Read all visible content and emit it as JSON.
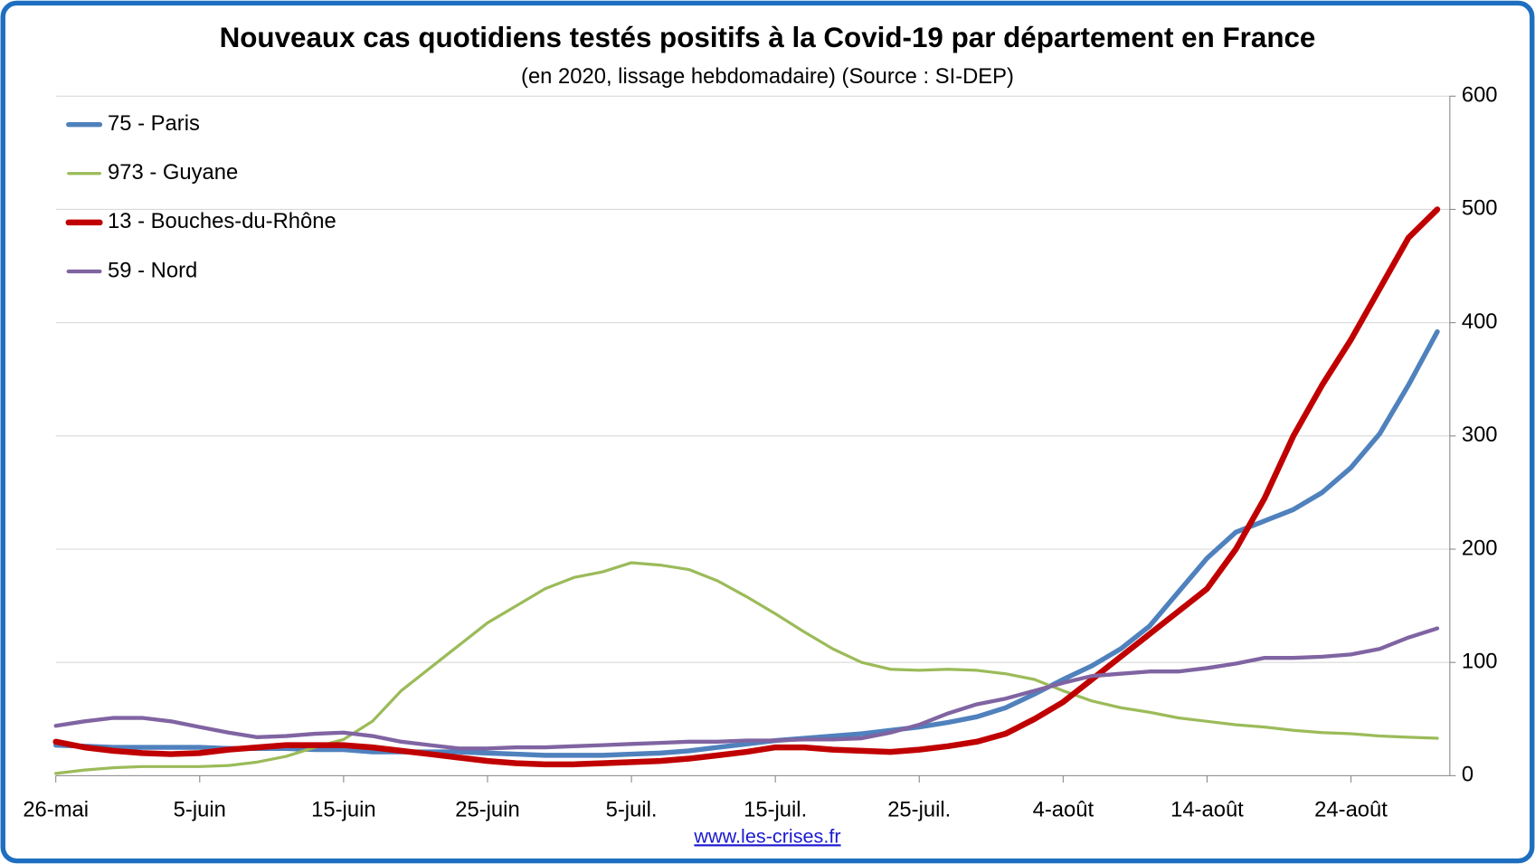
{
  "chart_data": {
    "type": "line",
    "title": "Nouveaux cas quotidiens testés positifs à la Covid-19 par département en France",
    "subtitle": "(en 2020, lissage hebdomadaire) (Source : SI-DEP)",
    "source_url": "www.les-crises.fr",
    "categories": [
      "26-mai",
      null,
      null,
      null,
      null,
      "5-juin",
      null,
      null,
      null,
      null,
      "15-juin",
      null,
      null,
      null,
      null,
      "25-juin",
      null,
      null,
      null,
      null,
      "5-juil.",
      null,
      null,
      null,
      null,
      "15-juil.",
      null,
      null,
      null,
      null,
      "25-juil.",
      null,
      null,
      null,
      null,
      "4-août",
      null,
      null,
      null,
      null,
      "14-août",
      null,
      null,
      null,
      null,
      "24-août",
      null,
      null,
      null
    ],
    "series": [
      {
        "name": "75 - Paris",
        "color": "#4f81bd",
        "values": [
          27,
          26,
          25,
          25,
          25,
          25,
          24,
          24,
          24,
          23,
          23,
          21,
          21,
          21,
          21,
          20,
          19,
          18,
          18,
          18,
          19,
          20,
          22,
          25,
          28,
          31,
          33,
          35,
          37,
          40,
          43,
          47,
          52,
          60,
          72,
          85,
          97,
          112,
          132,
          162,
          192,
          215,
          225,
          235,
          250,
          272,
          302,
          345,
          392
        ]
      },
      {
        "name": "973 - Guyane",
        "color": "#9bbb59",
        "values": [
          2,
          5,
          7,
          8,
          8,
          8,
          9,
          12,
          17,
          25,
          32,
          48,
          75,
          95,
          115,
          135,
          150,
          165,
          175,
          180,
          188,
          186,
          182,
          172,
          158,
          143,
          127,
          112,
          100,
          94,
          93,
          94,
          93,
          90,
          85,
          75,
          66,
          60,
          56,
          51,
          48,
          45,
          43,
          40,
          38,
          37,
          35,
          34,
          33
        ]
      },
      {
        "name": "13 - Bouches-du-Rhône",
        "color": "#c00000",
        "values": [
          30,
          25,
          22,
          20,
          19,
          20,
          23,
          25,
          27,
          27,
          27,
          25,
          22,
          19,
          16,
          13,
          11,
          10,
          10,
          11,
          12,
          13,
          15,
          18,
          21,
          25,
          25,
          23,
          22,
          21,
          23,
          26,
          30,
          37,
          50,
          65,
          85,
          105,
          125,
          145,
          165,
          200,
          245,
          300,
          345,
          385,
          430,
          475,
          500
        ]
      },
      {
        "name": "59 - Nord",
        "color": "#8064a2",
        "values": [
          44,
          48,
          51,
          51,
          48,
          43,
          38,
          34,
          35,
          37,
          38,
          35,
          30,
          27,
          24,
          24,
          25,
          25,
          26,
          27,
          28,
          29,
          30,
          30,
          31,
          31,
          32,
          32,
          33,
          38,
          45,
          55,
          63,
          68,
          75,
          82,
          88,
          90,
          92,
          92,
          95,
          99,
          104,
          104,
          105,
          107,
          112,
          122,
          130
        ]
      }
    ],
    "ylim": [
      0,
      600
    ],
    "yticks": [
      0,
      100,
      200,
      300,
      400,
      500,
      600
    ],
    "y_axis_side": "right",
    "grid": true,
    "legend": "upper left"
  }
}
